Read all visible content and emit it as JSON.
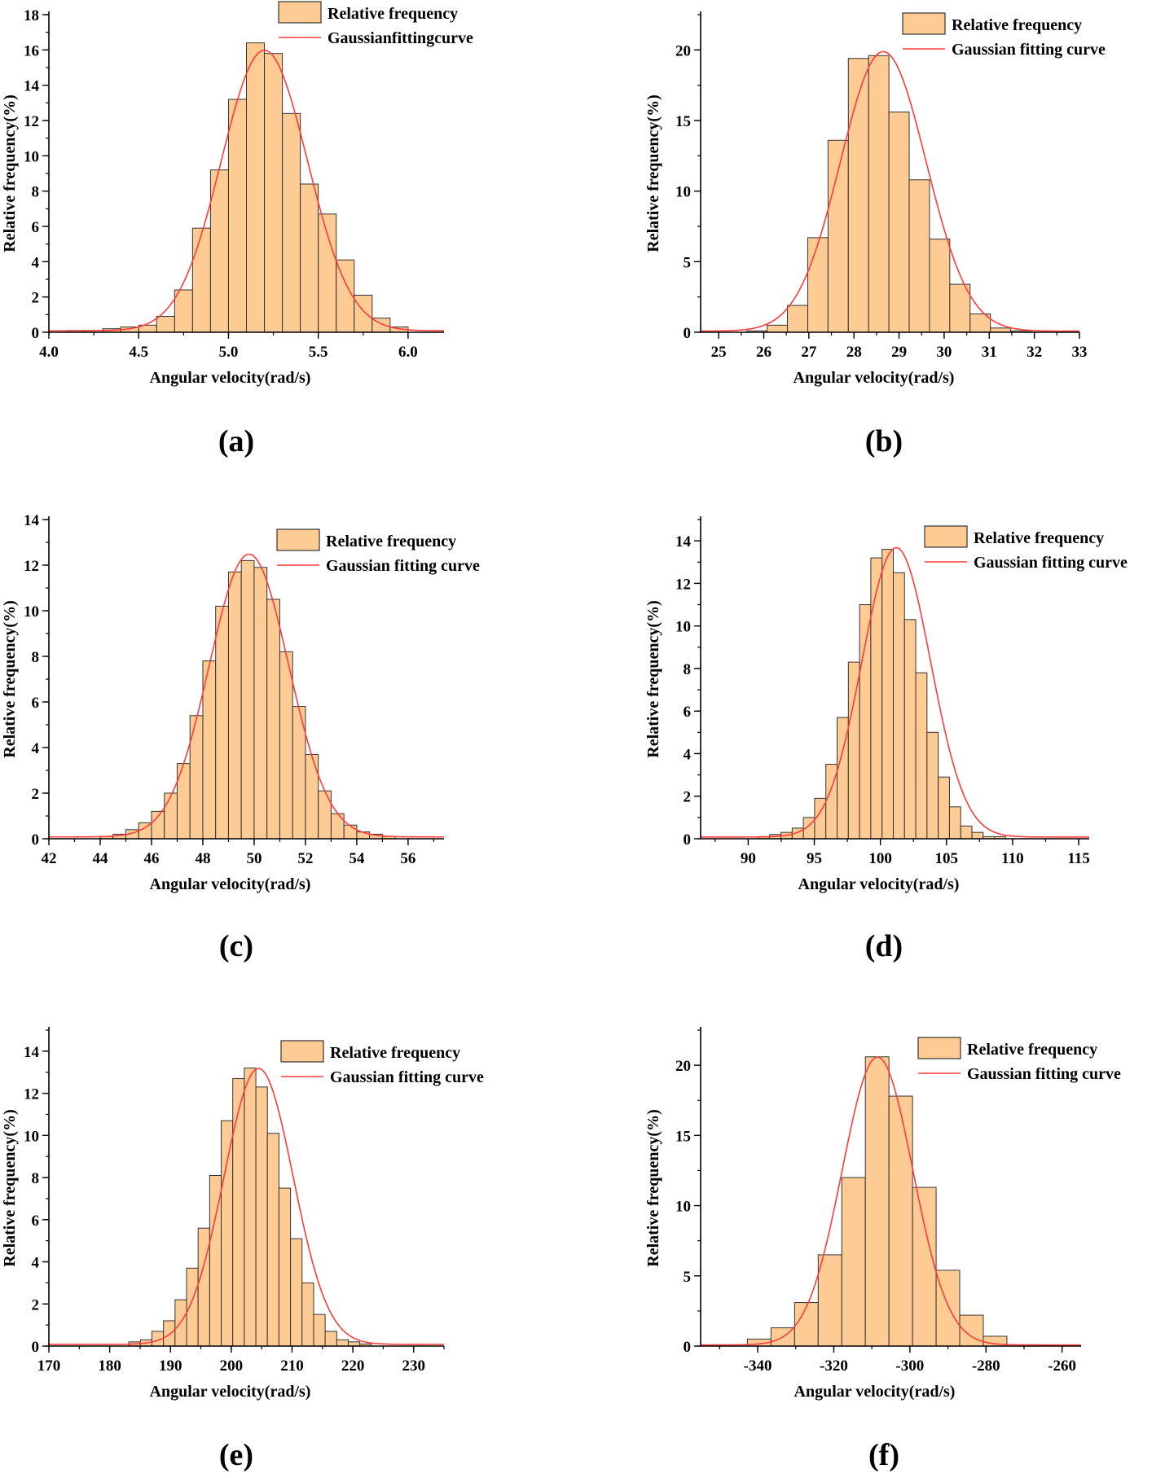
{
  "figure": {
    "bar_color": "#fdcb93",
    "bar_edge_color": "#333333",
    "curve_color": "#ff3b3b"
  },
  "chart_data": [
    {
      "id": "a",
      "caption": "(a)",
      "type": "bar",
      "title": "",
      "xlabel": "Angular velocity(rad/s)",
      "ylabel": "Relative frequency(%)",
      "xlim": [
        4.0,
        6.2
      ],
      "ylim": [
        0,
        18
      ],
      "xticks": [
        4.0,
        4.5,
        5.0,
        5.5,
        6.0
      ],
      "xtick_labels": [
        "4.0",
        "4.5",
        "5.0",
        "5.5",
        "6.0"
      ],
      "yticks": [
        0,
        2,
        4,
        6,
        8,
        10,
        12,
        14,
        16,
        18
      ],
      "ytick_labels": [
        "0",
        "2",
        "4",
        "6",
        "8",
        "10",
        "12",
        "14",
        "16",
        "18"
      ],
      "bin_width": 0.1,
      "bin_centers": [
        4.15,
        4.25,
        4.35,
        4.45,
        4.55,
        4.65,
        4.75,
        4.85,
        4.95,
        5.05,
        5.15,
        5.25,
        5.35,
        5.45,
        5.55,
        5.65,
        5.75,
        5.85,
        5.95
      ],
      "values": [
        0.1,
        0.1,
        0.2,
        0.3,
        0.4,
        0.9,
        2.4,
        5.9,
        9.2,
        13.2,
        16.4,
        15.8,
        12.4,
        8.4,
        6.7,
        4.1,
        2.1,
        0.8,
        0.3
      ],
      "fit": {
        "mean": 5.2,
        "sigma": 0.24,
        "peak": 15.9
      },
      "legend": {
        "location": "top-right",
        "bar_label": "Relative frequency",
        "curve_label": "Gaussianfittingcurve"
      }
    },
    {
      "id": "b",
      "caption": "(b)",
      "type": "bar",
      "title": "",
      "xlabel": "Angular velocity(rad/s)",
      "ylabel": "Relative frequency(%)",
      "xlim": [
        24.6,
        33
      ],
      "ylim": [
        0,
        22.5
      ],
      "xticks": [
        25,
        26,
        27,
        28,
        29,
        30,
        31,
        32,
        33
      ],
      "xtick_labels": [
        "25",
        "26",
        "27",
        "28",
        "29",
        "30",
        "31",
        "32",
        "33"
      ],
      "yticks": [
        0,
        5,
        10,
        15,
        20
      ],
      "ytick_labels": [
        "0",
        "5",
        "10",
        "15",
        "20"
      ],
      "bin_width": 0.45,
      "bin_centers": [
        25.85,
        26.3,
        26.75,
        27.2,
        27.65,
        28.1,
        28.55,
        29.0,
        29.45,
        29.9,
        30.35,
        30.8,
        31.25,
        31.7
      ],
      "values": [
        0.1,
        0.5,
        1.9,
        6.7,
        13.6,
        19.4,
        19.6,
        15.6,
        10.8,
        6.6,
        3.4,
        1.3,
        0.3,
        0.1
      ],
      "fit": {
        "mean": 28.65,
        "sigma": 0.95,
        "peak": 19.8
      },
      "legend": {
        "location": "top-right",
        "bar_label": "Relative frequency",
        "curve_label": "Gaussian fitting curve"
      }
    },
    {
      "id": "c",
      "caption": "(c)",
      "type": "bar",
      "title": "",
      "xlabel": "Angular velocity(rad/s)",
      "ylabel": "Relative frequency(%)",
      "xlim": [
        42,
        57.4
      ],
      "ylim": [
        0,
        14
      ],
      "xticks": [
        42,
        44,
        46,
        48,
        50,
        52,
        54,
        56
      ],
      "xtick_labels": [
        "42",
        "44",
        "46",
        "48",
        "50",
        "52",
        "54",
        "56"
      ],
      "yticks": [
        0,
        2,
        4,
        6,
        8,
        10,
        12,
        14
      ],
      "ytick_labels": [
        "0",
        "2",
        "4",
        "6",
        "8",
        "10",
        "12",
        "14"
      ],
      "bin_width": 0.5,
      "bin_centers": [
        44.25,
        44.75,
        45.25,
        45.75,
        46.25,
        46.75,
        47.25,
        47.75,
        48.25,
        48.75,
        49.25,
        49.75,
        50.25,
        50.75,
        51.25,
        51.75,
        52.25,
        52.75,
        53.25,
        53.75,
        54.25,
        54.75,
        55.25
      ],
      "values": [
        0.1,
        0.2,
        0.4,
        0.7,
        1.2,
        2.0,
        3.3,
        5.4,
        7.8,
        10.2,
        11.7,
        12.2,
        11.9,
        10.5,
        8.2,
        5.8,
        3.7,
        2.1,
        1.1,
        0.6,
        0.3,
        0.2,
        0.1
      ],
      "fit": {
        "mean": 49.8,
        "sigma": 1.55,
        "peak": 12.4
      },
      "legend": {
        "location": "top-right",
        "bar_label": "Relative frequency",
        "curve_label": "Gaussian fitting curve"
      }
    },
    {
      "id": "d",
      "caption": "(d)",
      "type": "bar",
      "title": "",
      "xlabel": "Angular velocity(rad/s)",
      "ylabel": "Relative frequency(%)",
      "xlim": [
        86.4,
        115.8
      ],
      "ylim": [
        0,
        15
      ],
      "xticks": [
        90,
        95,
        100,
        105,
        110,
        115
      ],
      "xtick_labels": [
        "90",
        "95",
        "100",
        "105",
        "110",
        "115"
      ],
      "yticks": [
        0,
        2,
        4,
        6,
        8,
        10,
        12,
        14
      ],
      "ytick_labels": [
        "0",
        "2",
        "4",
        "6",
        "8",
        "10",
        "12",
        "14"
      ],
      "bin_width": 0.85,
      "bin_centers": [
        91.2,
        92.05,
        92.9,
        93.75,
        94.6,
        95.45,
        96.3,
        97.15,
        98.0,
        98.85,
        99.7,
        100.55,
        101.4,
        102.25,
        103.1,
        103.95,
        104.8,
        105.65,
        106.5,
        107.35,
        108.2,
        109.05
      ],
      "values": [
        0.1,
        0.2,
        0.3,
        0.5,
        1.0,
        1.9,
        3.5,
        5.7,
        8.3,
        11.0,
        13.2,
        13.6,
        12.5,
        10.3,
        7.8,
        5.0,
        2.9,
        1.5,
        0.6,
        0.3,
        0.1,
        0.1
      ],
      "fit": {
        "mean": 101.2,
        "sigma": 2.6,
        "peak": 13.6
      },
      "legend": {
        "location": "top-right",
        "bar_label": "Relative frequency",
        "curve_label": "Gaussian fitting curve"
      }
    },
    {
      "id": "e",
      "caption": "(e)",
      "type": "bar",
      "title": "",
      "xlabel": "Angular velocity(rad/s)",
      "ylabel": "Relative frequency(%)",
      "xlim": [
        170,
        235
      ],
      "ylim": [
        0,
        15
      ],
      "xticks": [
        170,
        180,
        190,
        200,
        210,
        220,
        230
      ],
      "xtick_labels": [
        "170",
        "180",
        "190",
        "200",
        "210",
        "220",
        "230"
      ],
      "yticks": [
        0,
        2,
        4,
        6,
        8,
        10,
        12,
        14
      ],
      "ytick_labels": [
        "0",
        "2",
        "4",
        "6",
        "8",
        "10",
        "12",
        "14"
      ],
      "bin_width": 1.9,
      "bin_centers": [
        184.1,
        186.0,
        187.9,
        189.8,
        191.7,
        193.6,
        195.5,
        197.4,
        199.3,
        201.2,
        203.1,
        205.0,
        206.9,
        208.8,
        210.7,
        212.6,
        214.5,
        216.4,
        218.3,
        220.2,
        222.1
      ],
      "values": [
        0.2,
        0.3,
        0.7,
        1.2,
        2.2,
        3.7,
        5.6,
        8.1,
        10.7,
        12.7,
        13.2,
        12.3,
        10.1,
        7.5,
        5.1,
        3.0,
        1.5,
        0.7,
        0.3,
        0.2,
        0.1
      ],
      "fit": {
        "mean": 204.5,
        "sigma": 5.7,
        "peak": 13.1
      },
      "legend": {
        "location": "top-right",
        "bar_label": "Relative frequency",
        "curve_label": "Gaussian fitting curve"
      }
    },
    {
      "id": "f",
      "caption": "(f)",
      "type": "bar",
      "title": "",
      "xlabel": "Angular velocity(rad/s)",
      "ylabel": "Relative frequency(%)",
      "xlim": [
        -355,
        -255
      ],
      "ylim": [
        0,
        22.5
      ],
      "xticks": [
        -340,
        -320,
        -300,
        -280,
        -260
      ],
      "xtick_labels": [
        "-340",
        "-320",
        "-300",
        "-280",
        "-260"
      ],
      "yticks": [
        0,
        5,
        10,
        15,
        20
      ],
      "ytick_labels": [
        "0",
        "5",
        "10",
        "15",
        "20"
      ],
      "bin_width": 6.2,
      "bin_centers": [
        -339.6,
        -333.4,
        -327.2,
        -321.0,
        -314.8,
        -308.6,
        -302.4,
        -296.2,
        -290.0,
        -283.8,
        -277.6
      ],
      "values": [
        0.5,
        1.3,
        3.1,
        6.5,
        12.0,
        20.6,
        17.8,
        11.3,
        5.4,
        2.2,
        0.7
      ],
      "fit": {
        "mean": -308.5,
        "sigma": 9.3,
        "peak": 20.5
      },
      "legend": {
        "location": "top-right",
        "bar_label": "Relative frequency",
        "curve_label": "Gaussian fitting curve"
      }
    }
  ]
}
